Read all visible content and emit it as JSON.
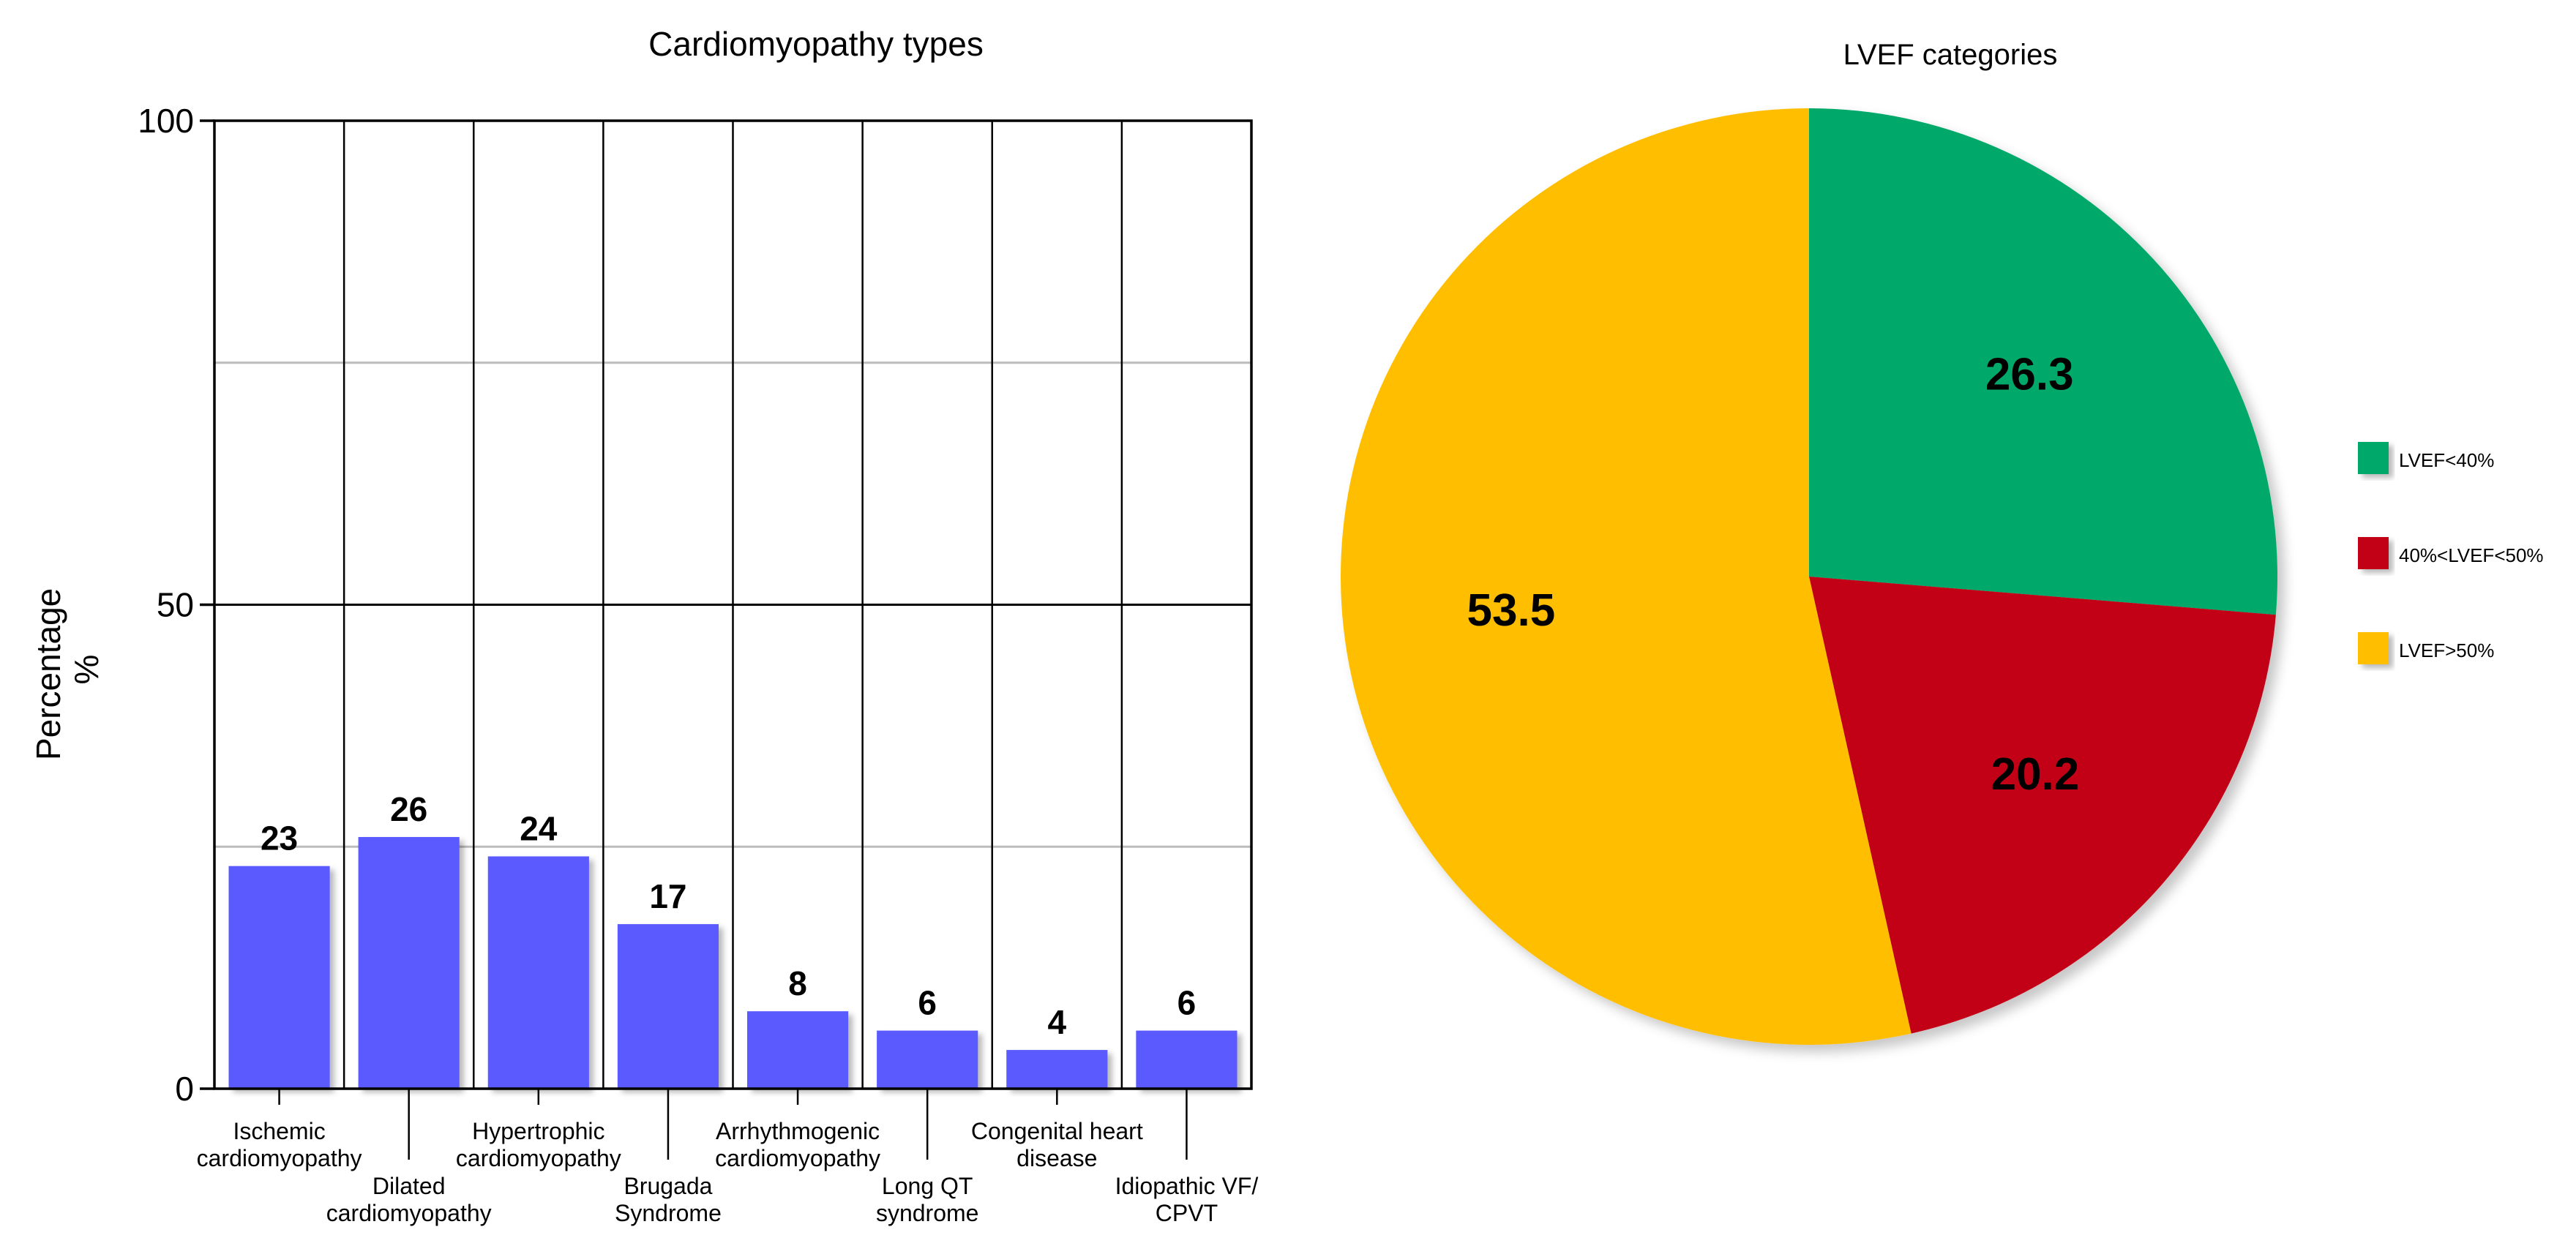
{
  "chart_data": [
    {
      "type": "bar",
      "title": "Cardiomyopathy types",
      "ylabel_line1": "Percentage",
      "ylabel_line2": "%",
      "ylim": [
        0,
        100
      ],
      "yticks": [
        "0",
        "50",
        "100"
      ],
      "grid": true,
      "categories": [
        [
          "Ischemic",
          "cardiomyopathy"
        ],
        [
          "Dilated",
          "cardiomyopathy"
        ],
        [
          "Hypertrophic",
          "cardiomyopathy"
        ],
        [
          "Brugada",
          "Syndrome"
        ],
        [
          "Arrhythmogenic",
          "cardiomyopathy"
        ],
        [
          "Long QT",
          "syndrome"
        ],
        [
          "Congenital heart",
          "disease"
        ],
        [
          "Idiopathic VF/",
          "CPVT"
        ]
      ],
      "values": [
        23,
        26,
        24,
        17,
        8,
        6,
        4,
        6
      ],
      "bar_color": "#5a5aff"
    },
    {
      "type": "pie",
      "title": "LVEF categories",
      "legend_position": "right",
      "slices": [
        {
          "label": "LVEF<40%",
          "value": 26.3,
          "color": "#00a96b"
        },
        {
          "label": "40%<LVEF<50%",
          "value": 20.2,
          "color": "#c20019"
        },
        {
          "label": "LVEF>50%",
          "value": 53.5,
          "color": "#ffbe00"
        }
      ]
    }
  ]
}
